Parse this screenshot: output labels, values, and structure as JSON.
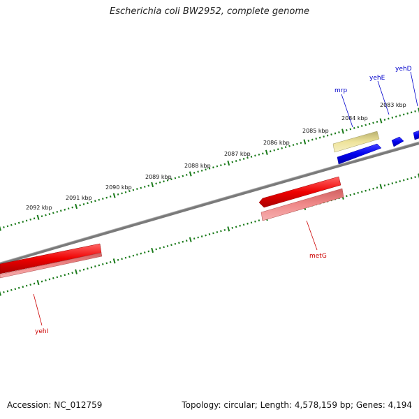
{
  "title": "Escherichia coli BW2952, complete genome",
  "accession": "Accession: NC_012759",
  "summary": "Topology: circular; Length: 4,578,159 bp; Genes: 4,194",
  "colors": {
    "backbone": "#808080",
    "ticks": "#1a7a1a",
    "forward_gene": "#0000ee",
    "reverse_gene": "#ee0000",
    "forward_cds": "#eee39a",
    "reverse_cds": "#f08080",
    "forward_label": "#0000cc",
    "reverse_label": "#cc0000"
  },
  "scale_labels": [
    "2083 kbp",
    "2084 kbp",
    "2085 kbp",
    "2086 kbp",
    "2087 kbp",
    "2088 kbp",
    "2089 kbp",
    "2090 kbp",
    "2091 kbp",
    "2092 kbp"
  ],
  "gene_labels": {
    "yehD": "yehD",
    "yehE": "yehE",
    "mrp": "mrp",
    "metG": "metG",
    "yehI": "yehI"
  }
}
